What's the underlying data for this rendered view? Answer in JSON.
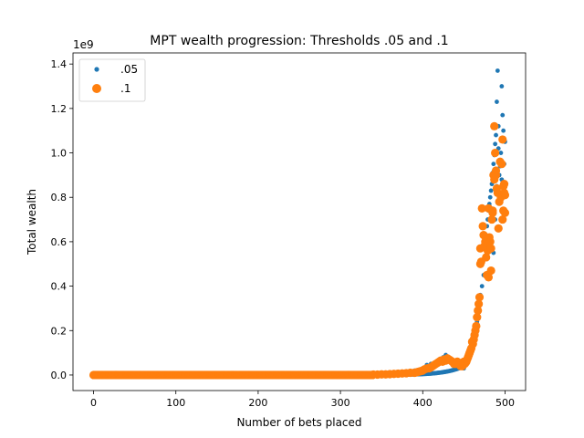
{
  "chart_data": {
    "type": "scatter",
    "title": "MPT wealth progression: Thresholds .05 and .1",
    "xlabel": "Number of bets placed",
    "ylabel": "Total wealth",
    "y_offset_label": "1e9",
    "xlim": [
      -25,
      525
    ],
    "ylim": [
      -0.07,
      1.45
    ],
    "x_ticks": [
      0,
      100,
      200,
      300,
      400,
      500
    ],
    "x_tick_labels": [
      "0",
      "100",
      "200",
      "300",
      "400",
      "500"
    ],
    "y_ticks": [
      0.0,
      0.2,
      0.4,
      0.6,
      0.8,
      1.0,
      1.2,
      1.4
    ],
    "y_tick_labels": [
      "0.0",
      "0.2",
      "0.4",
      "0.6",
      "0.8",
      "1.0",
      "1.2",
      "1.4"
    ],
    "grid": false,
    "legend_position": "top-left",
    "series": [
      {
        "name": ".05",
        "color": "#1f77b4",
        "marker_size": "small",
        "points": [
          [
            450,
            0.03
          ],
          [
            452,
            0.045
          ],
          [
            454,
            0.06
          ],
          [
            456,
            0.08
          ],
          [
            458,
            0.11
          ],
          [
            460,
            0.14
          ],
          [
            462,
            0.17
          ],
          [
            464,
            0.2
          ],
          [
            466,
            0.24
          ],
          [
            468,
            0.3
          ],
          [
            470,
            0.36
          ],
          [
            472,
            0.4
          ],
          [
            474,
            0.45
          ],
          [
            475,
            0.52
          ],
          [
            476,
            0.58
          ],
          [
            477,
            0.63
          ],
          [
            478,
            0.67
          ],
          [
            479,
            0.7
          ],
          [
            480,
            0.74
          ],
          [
            481,
            0.77
          ],
          [
            482,
            0.8
          ],
          [
            483,
            0.83
          ],
          [
            484,
            0.86
          ],
          [
            485,
            0.91
          ],
          [
            486,
            0.95
          ],
          [
            487,
            0.99
          ],
          [
            488,
            1.04
          ],
          [
            489,
            1.08
          ],
          [
            490,
            1.23
          ],
          [
            491,
            1.37
          ],
          [
            492,
            1.12
          ],
          [
            493,
            0.9
          ],
          [
            494,
            0.8
          ],
          [
            495,
            1.0
          ],
          [
            496,
            1.3
          ],
          [
            497,
            1.17
          ],
          [
            498,
            1.1
          ],
          [
            499,
            0.95
          ],
          [
            500,
            1.05
          ],
          [
            478,
            0.55
          ],
          [
            482,
            0.6
          ],
          [
            486,
            0.55
          ],
          [
            488,
            0.7
          ],
          [
            490,
            0.85
          ],
          [
            492,
            1.02
          ],
          [
            494,
            0.94
          ],
          [
            496,
            0.88
          ],
          [
            420,
            0.07
          ],
          [
            425,
            0.08
          ],
          [
            428,
            0.09
          ],
          [
            432,
            0.07
          ],
          [
            436,
            0.065
          ],
          [
            440,
            0.06
          ],
          [
            445,
            0.06
          ],
          [
            410,
            0.05
          ],
          [
            405,
            0.045
          ],
          [
            400,
            0.03
          ],
          [
            395,
            0.02
          ],
          [
            390,
            0.02
          ],
          [
            385,
            0.015
          ],
          [
            380,
            0.015
          ]
        ]
      },
      {
        "name": ".1",
        "color": "#ff7f0e",
        "marker_size": "large",
        "points": [
          [
            470,
            0.57
          ],
          [
            472,
            0.75
          ],
          [
            473,
            0.67
          ],
          [
            474,
            0.63
          ],
          [
            475,
            0.58
          ],
          [
            476,
            0.6
          ],
          [
            477,
            0.53
          ],
          [
            478,
            0.45
          ],
          [
            479,
            0.56
          ],
          [
            480,
            0.75
          ],
          [
            481,
            0.62
          ],
          [
            482,
            0.6
          ],
          [
            483,
            0.57
          ],
          [
            484,
            0.7
          ],
          [
            485,
            0.73
          ],
          [
            486,
            0.9
          ],
          [
            487,
            1.12
          ],
          [
            488,
            1.0
          ],
          [
            489,
            0.92
          ],
          [
            490,
            0.84
          ],
          [
            491,
            0.82
          ],
          [
            492,
            0.66
          ],
          [
            493,
            0.78
          ],
          [
            494,
            0.96
          ],
          [
            495,
            0.8
          ],
          [
            496,
            0.95
          ],
          [
            497,
            1.06
          ],
          [
            498,
            0.74
          ],
          [
            499,
            0.86
          ],
          [
            500,
            0.81
          ],
          [
            497,
            0.7
          ],
          [
            498,
            0.85
          ],
          [
            499,
            0.82
          ],
          [
            500,
            0.73
          ],
          [
            480,
            0.44
          ],
          [
            483,
            0.47
          ],
          [
            485,
            0.74
          ],
          [
            487,
            0.88
          ],
          [
            489,
            0.9
          ],
          [
            466,
            0.26
          ],
          [
            467,
            0.29
          ],
          [
            468,
            0.32
          ],
          [
            469,
            0.35
          ],
          [
            470,
            0.5
          ],
          [
            471,
            0.51
          ],
          [
            464,
            0.2
          ],
          [
            465,
            0.22
          ],
          [
            463,
            0.18
          ],
          [
            462,
            0.16
          ],
          [
            461,
            0.14
          ],
          [
            460,
            0.15
          ],
          [
            459,
            0.12
          ],
          [
            458,
            0.11
          ],
          [
            457,
            0.1
          ],
          [
            456,
            0.09
          ],
          [
            455,
            0.08
          ],
          [
            454,
            0.07
          ],
          [
            453,
            0.06
          ],
          [
            452,
            0.055
          ],
          [
            451,
            0.05
          ],
          [
            450,
            0.06
          ],
          [
            448,
            0.04
          ],
          [
            446,
            0.04
          ],
          [
            444,
            0.05
          ],
          [
            442,
            0.06
          ],
          [
            440,
            0.05
          ],
          [
            438,
            0.05
          ],
          [
            436,
            0.06
          ],
          [
            434,
            0.065
          ],
          [
            432,
            0.07
          ],
          [
            430,
            0.075
          ],
          [
            428,
            0.065
          ],
          [
            426,
            0.07
          ],
          [
            424,
            0.06
          ],
          [
            422,
            0.065
          ],
          [
            420,
            0.06
          ],
          [
            418,
            0.055
          ],
          [
            416,
            0.05
          ],
          [
            414,
            0.045
          ],
          [
            412,
            0.04
          ],
          [
            410,
            0.035
          ],
          [
            408,
            0.03
          ],
          [
            406,
            0.03
          ],
          [
            404,
            0.028
          ],
          [
            402,
            0.025
          ],
          [
            400,
            0.02
          ],
          [
            398,
            0.018
          ],
          [
            396,
            0.016
          ],
          [
            394,
            0.014
          ],
          [
            392,
            0.012
          ],
          [
            390,
            0.01
          ],
          [
            385,
            0.01
          ],
          [
            380,
            0.008
          ],
          [
            375,
            0.007
          ],
          [
            370,
            0.006
          ],
          [
            365,
            0.005
          ],
          [
            360,
            0.004
          ],
          [
            355,
            0.003
          ],
          [
            350,
            0.003
          ],
          [
            345,
            0.002
          ],
          [
            340,
            0.002
          ]
        ]
      }
    ]
  }
}
